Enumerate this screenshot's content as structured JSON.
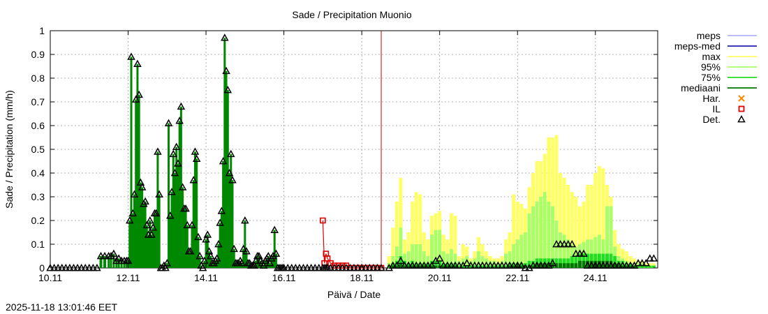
{
  "chart_data": {
    "type": "bar",
    "title": "Sade / Precipitation  Muonio",
    "xlabel": "Päivä / Date",
    "ylabel": "Sade / Precipitation (mm/h)",
    "timestamp": "2025-11-18 13:01:46 EET",
    "xlim": [
      0,
      15.6
    ],
    "ylim": [
      0,
      1
    ],
    "yticks": [
      0,
      0.1,
      0.2,
      0.3,
      0.4,
      0.5,
      0.6,
      0.7,
      0.8,
      0.9,
      1
    ],
    "xticks": [
      {
        "x": 0,
        "label": "10.11"
      },
      {
        "x": 2,
        "label": "12.11"
      },
      {
        "x": 4,
        "label": "14.11"
      },
      {
        "x": 6,
        "label": "16.11"
      },
      {
        "x": 8,
        "label": "18.11"
      },
      {
        "x": 10,
        "label": "20.11"
      },
      {
        "x": 12,
        "label": "22.11"
      },
      {
        "x": 14,
        "label": "24.11"
      }
    ],
    "now_x": 8.5,
    "grid": true,
    "legend_position": "right",
    "legend": [
      {
        "label": "meps",
        "kind": "line",
        "color": "#b3b3ff"
      },
      {
        "label": "meps-med",
        "kind": "line",
        "color": "#2020b0"
      },
      {
        "label": "max",
        "kind": "line",
        "color": "#ffff66"
      },
      {
        "label": "95%",
        "kind": "line",
        "color": "#aaff66"
      },
      {
        "label": "75%",
        "kind": "line",
        "color": "#22dd22"
      },
      {
        "label": "mediaani",
        "kind": "line",
        "color": "#007700"
      },
      {
        "label": "Har.",
        "kind": "cross",
        "color": "#ff8800"
      },
      {
        "label": "IL",
        "kind": "square",
        "color": "#dd0000"
      },
      {
        "label": "Det.",
        "kind": "triangle",
        "color": "#000000"
      }
    ],
    "colors": {
      "observed_bar": "#008800",
      "max": "#ffff66",
      "p95": "#aaff66",
      "p75": "#22dd22",
      "median": "#007700",
      "now_line": "#cc0000",
      "il": "#dd0000",
      "det": "#000000"
    },
    "observed": {
      "name": "Det.",
      "x": [
        0.0,
        0.1,
        0.2,
        0.3,
        0.4,
        0.5,
        0.6,
        0.7,
        0.8,
        0.9,
        1.0,
        1.1,
        1.2,
        1.3,
        1.4,
        1.5,
        1.56,
        1.63,
        1.7,
        1.76,
        1.83,
        1.9,
        1.96,
        2.0,
        2.04,
        2.08,
        2.12,
        2.16,
        2.2,
        2.24,
        2.28,
        2.32,
        2.36,
        2.4,
        2.44,
        2.48,
        2.52,
        2.56,
        2.6,
        2.64,
        2.68,
        2.72,
        2.76,
        2.8,
        2.84,
        2.88,
        2.92,
        2.96,
        3.0,
        3.04,
        3.08,
        3.12,
        3.16,
        3.2,
        3.24,
        3.28,
        3.32,
        3.36,
        3.4,
        3.44,
        3.48,
        3.52,
        3.56,
        3.6,
        3.64,
        3.68,
        3.72,
        3.76,
        3.8,
        3.84,
        3.88,
        3.92,
        3.96,
        4.0,
        4.04,
        4.08,
        4.12,
        4.16,
        4.2,
        4.24,
        4.28,
        4.32,
        4.36,
        4.4,
        4.44,
        4.48,
        4.52,
        4.56,
        4.6,
        4.64,
        4.68,
        4.72,
        4.76,
        4.8,
        4.84,
        4.88,
        4.92,
        4.96,
        5.0,
        5.04,
        5.08,
        5.12,
        5.16,
        5.2,
        5.24,
        5.28,
        5.32,
        5.36,
        5.4,
        5.44,
        5.48,
        5.52,
        5.56,
        5.6,
        5.64,
        5.68,
        5.72,
        5.76,
        5.8,
        5.84,
        5.88,
        5.92,
        5.96,
        6.0,
        6.1,
        6.2,
        6.3,
        6.4,
        6.5,
        6.6,
        6.7,
        6.8,
        6.9,
        7.0,
        7.04,
        7.08,
        7.12,
        7.2,
        7.3,
        7.4,
        7.5,
        7.6,
        7.7,
        7.8,
        7.9,
        8.0,
        8.1,
        8.2,
        8.3,
        8.4,
        8.5
      ],
      "values": [
        0.0,
        0.0,
        0.0,
        0.0,
        0.0,
        0.0,
        0.0,
        0.0,
        0.0,
        0.0,
        0.0,
        0.0,
        0.0,
        0.05,
        0.05,
        0.05,
        0.05,
        0.06,
        0.03,
        0.04,
        0.03,
        0.03,
        0.03,
        0.03,
        0.2,
        0.89,
        0.23,
        0.31,
        0.71,
        0.86,
        0.73,
        0.36,
        0.34,
        0.27,
        0.28,
        0.18,
        0.14,
        0.2,
        0.14,
        0.17,
        0.23,
        0.23,
        0.49,
        0.31,
        0.0,
        0.0,
        0.01,
        0.0,
        0.02,
        0.61,
        0.22,
        0.32,
        0.48,
        0.4,
        0.51,
        0.44,
        0.62,
        0.68,
        0.34,
        0.25,
        0.25,
        0.18,
        0.07,
        0.07,
        0.18,
        0.37,
        0.49,
        0.46,
        0.13,
        0.05,
        0.01,
        0.0,
        0.03,
        0.12,
        0.14,
        0.07,
        0.05,
        0.02,
        0.02,
        0.03,
        0.04,
        0.1,
        0.19,
        0.24,
        0.45,
        0.97,
        0.83,
        0.75,
        0.4,
        0.48,
        0.37,
        0.08,
        0.02,
        0.02,
        0.02,
        0.03,
        0.02,
        0.08,
        0.2,
        0.07,
        0.02,
        0.02,
        0.01,
        0.01,
        0.01,
        0.03,
        0.05,
        0.05,
        0.03,
        0.02,
        0.01,
        0.03,
        0.04,
        0.05,
        0.02,
        0.04,
        0.05,
        0.16,
        0.06,
        0.0,
        0.0,
        0.0,
        0.0,
        0.0,
        0.0,
        0.0,
        0.0,
        0.0,
        0.0,
        0.0,
        0.0,
        0.0,
        0.0,
        0.0,
        0.0,
        0.0,
        0.0,
        0.0,
        0.0,
        0.0,
        0.0,
        0.0,
        0.0,
        0.0,
        0.0,
        0.0,
        0.0,
        0.0,
        0.0,
        0.0,
        0.0
      ]
    },
    "il": {
      "name": "IL",
      "x": [
        7.0,
        7.04,
        7.08,
        7.12,
        7.2,
        7.3,
        7.4,
        7.5,
        7.6,
        7.7,
        7.8,
        7.9,
        8.0,
        8.1,
        8.2,
        8.3,
        8.4,
        8.5
      ],
      "values": [
        0.2,
        0.02,
        0.06,
        0.04,
        0.02,
        0.01,
        0.01,
        0.01,
        0.01,
        0.0,
        0.0,
        0.0,
        0.0,
        0.0,
        0.0,
        0.0,
        0.0,
        0.0
      ]
    },
    "forecast": {
      "x": [
        8.7,
        8.8,
        8.9,
        9.0,
        9.1,
        9.2,
        9.3,
        9.4,
        9.5,
        9.6,
        9.7,
        9.8,
        9.9,
        10.0,
        10.1,
        10.2,
        10.3,
        10.4,
        10.5,
        10.6,
        10.7,
        10.8,
        10.9,
        11.0,
        11.1,
        11.2,
        11.3,
        11.4,
        11.5,
        11.6,
        11.7,
        11.8,
        11.9,
        12.0,
        12.1,
        12.2,
        12.3,
        12.4,
        12.5,
        12.6,
        12.7,
        12.8,
        12.9,
        13.0,
        13.1,
        13.2,
        13.3,
        13.4,
        13.5,
        13.6,
        13.7,
        13.8,
        13.9,
        14.0,
        14.1,
        14.2,
        14.3,
        14.4,
        14.5,
        14.6,
        14.7,
        14.8,
        14.9,
        15.0,
        15.1,
        15.2,
        15.3,
        15.4,
        15.5
      ],
      "max": [
        0.05,
        0.17,
        0.28,
        0.38,
        0.12,
        0.15,
        0.28,
        0.32,
        0.31,
        0.15,
        0.12,
        0.22,
        0.23,
        0.24,
        0.14,
        0.12,
        0.23,
        0.22,
        0.05,
        0.1,
        0.09,
        0.04,
        0.07,
        0.13,
        0.1,
        0.07,
        0.05,
        0.04,
        0.04,
        0.05,
        0.12,
        0.15,
        0.31,
        0.28,
        0.27,
        0.25,
        0.34,
        0.4,
        0.45,
        0.45,
        0.48,
        0.55,
        0.55,
        0.56,
        0.4,
        0.38,
        0.35,
        0.32,
        0.3,
        0.26,
        0.28,
        0.35,
        0.35,
        0.4,
        0.43,
        0.42,
        0.35,
        0.3,
        0.16,
        0.1,
        0.08,
        0.07,
        0.05,
        0.04,
        0.03,
        0.03,
        0.02,
        0.02,
        0.02
      ],
      "p95": [
        0.02,
        0.05,
        0.09,
        0.17,
        0.06,
        0.07,
        0.1,
        0.1,
        0.1,
        0.07,
        0.05,
        0.14,
        0.16,
        0.16,
        0.07,
        0.06,
        0.08,
        0.06,
        0.03,
        0.04,
        0.05,
        0.03,
        0.04,
        0.07,
        0.05,
        0.04,
        0.03,
        0.03,
        0.02,
        0.03,
        0.06,
        0.07,
        0.1,
        0.12,
        0.14,
        0.15,
        0.23,
        0.26,
        0.28,
        0.3,
        0.32,
        0.28,
        0.26,
        0.2,
        0.15,
        0.14,
        0.12,
        0.1,
        0.09,
        0.1,
        0.11,
        0.12,
        0.12,
        0.13,
        0.14,
        0.12,
        0.26,
        0.26,
        0.09,
        0.05,
        0.04,
        0.03,
        0.02,
        0.02,
        0.02,
        0.02,
        0.01,
        0.01,
        0.01
      ],
      "p75": [
        0.01,
        0.02,
        0.03,
        0.05,
        0.03,
        0.02,
        0.03,
        0.02,
        0.02,
        0.02,
        0.02,
        0.03,
        0.03,
        0.03,
        0.02,
        0.02,
        0.02,
        0.02,
        0.01,
        0.01,
        0.01,
        0.01,
        0.01,
        0.01,
        0.01,
        0.01,
        0.01,
        0.01,
        0.01,
        0.01,
        0.01,
        0.02,
        0.02,
        0.02,
        0.02,
        0.02,
        0.03,
        0.03,
        0.04,
        0.04,
        0.04,
        0.04,
        0.04,
        0.04,
        0.04,
        0.04,
        0.04,
        0.05,
        0.05,
        0.06,
        0.06,
        0.06,
        0.06,
        0.06,
        0.06,
        0.06,
        0.06,
        0.06,
        0.05,
        0.03,
        0.03,
        0.02,
        0.02,
        0.01,
        0.01,
        0.01,
        0.01,
        0.01,
        0.01
      ],
      "median": [
        0.0,
        0.01,
        0.01,
        0.02,
        0.01,
        0.01,
        0.01,
        0.01,
        0.01,
        0.01,
        0.01,
        0.01,
        0.01,
        0.01,
        0.01,
        0.01,
        0.01,
        0.01,
        0.0,
        0.0,
        0.0,
        0.0,
        0.0,
        0.0,
        0.0,
        0.0,
        0.0,
        0.0,
        0.0,
        0.0,
        0.0,
        0.01,
        0.01,
        0.01,
        0.01,
        0.01,
        0.01,
        0.01,
        0.02,
        0.02,
        0.02,
        0.02,
        0.02,
        0.02,
        0.02,
        0.02,
        0.02,
        0.02,
        0.02,
        0.03,
        0.03,
        0.03,
        0.03,
        0.03,
        0.03,
        0.03,
        0.03,
        0.03,
        0.02,
        0.02,
        0.01,
        0.01,
        0.01,
        0.01,
        0.0,
        0.0,
        0.0,
        0.0,
        0.0
      ],
      "det": [
        0.0,
        0.01,
        0.01,
        0.03,
        0.01,
        0.01,
        0.01,
        0.01,
        0.01,
        0.01,
        0.01,
        0.01,
        0.03,
        0.04,
        0.01,
        0.01,
        0.01,
        0.01,
        0.01,
        0.01,
        0.02,
        0.01,
        0.01,
        0.01,
        0.01,
        0.01,
        0.01,
        0.01,
        0.01,
        0.01,
        0.01,
        0.01,
        0.01,
        0.01,
        0.01,
        0.0,
        0.0,
        0.01,
        0.01,
        0.01,
        0.01,
        0.01,
        0.02,
        0.1,
        0.1,
        0.1,
        0.1,
        0.1,
        0.06,
        0.06,
        0.06,
        0.01,
        0.01,
        0.01,
        0.01,
        0.01,
        0.01,
        0.01,
        0.01,
        0.01,
        0.01,
        0.01,
        0.01,
        0.01,
        0.02,
        0.02,
        0.02,
        0.04,
        0.04
      ]
    }
  }
}
